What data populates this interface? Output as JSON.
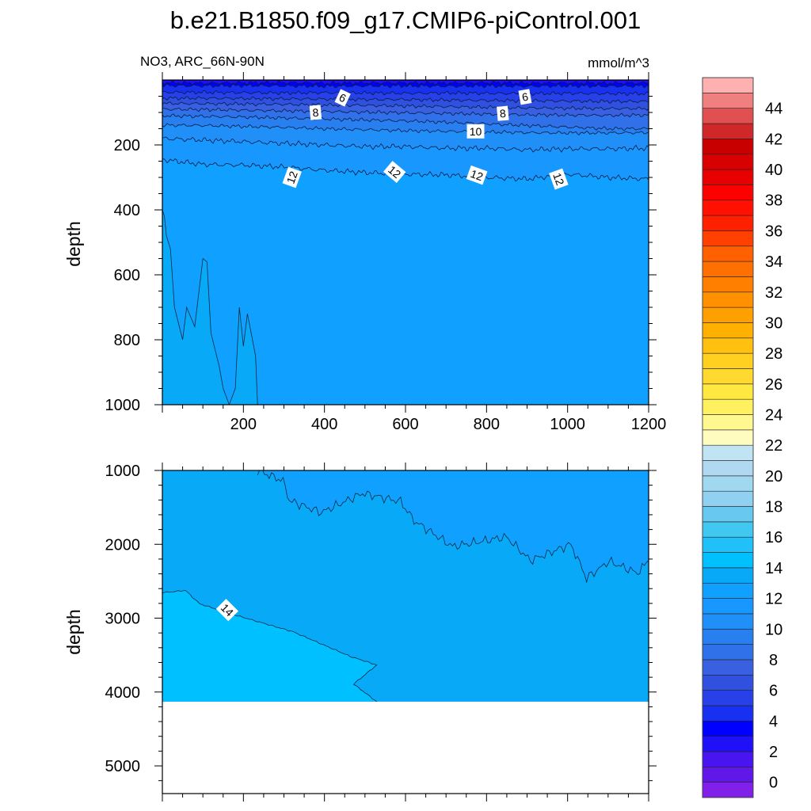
{
  "chart_data": {
    "type": "contour",
    "title": "b.e21.B1850.f09_g17.CMIP6-piControl.001",
    "subtitle_left": "NO3, ARC_66N-90N",
    "subtitle_right": "mmol/m^3",
    "ylabel": "depth",
    "panels": [
      {
        "name": "upper",
        "xlim": [
          0,
          1200
        ],
        "ylim": [
          0,
          1000
        ],
        "x_ticks": [
          "200",
          "400",
          "600",
          "800",
          "1000",
          "1200"
        ],
        "y_ticks": [
          "200",
          "400",
          "600",
          "800",
          "1000"
        ],
        "x_grid": [
          0,
          100,
          200,
          300,
          400,
          500,
          600,
          700,
          800,
          900,
          1000,
          1100,
          1200
        ],
        "contours": [
          {
            "level": 3,
            "depth": [
              8,
              10,
              9,
              8,
              10,
              9,
              9,
              10,
              8,
              10,
              9,
              10,
              9
            ]
          },
          {
            "level": 4,
            "depth": [
              17,
              18,
              17,
              18,
              19,
              18,
              18,
              19,
              18,
              19,
              18,
              19,
              18
            ]
          },
          {
            "level": 5,
            "depth": [
              38,
              38,
              39,
              40,
              39,
              40,
              41,
              40,
              41,
              42,
              41,
              42,
              42
            ]
          },
          {
            "level": 6,
            "depth": [
              56,
              56,
              57,
              58,
              59,
              60,
              60,
              62,
              63,
              64,
              65,
              66,
              66
            ]
          },
          {
            "level": 7,
            "depth": [
              72,
              73,
              74,
              75,
              77,
              78,
              80,
              82,
              84,
              86,
              87,
              88,
              88
            ]
          },
          {
            "level": 8,
            "depth": [
              90,
              91,
              93,
              95,
              97,
              99,
              101,
              103,
              105,
              107,
              108,
              109,
              108
            ]
          },
          {
            "level": 9,
            "depth": [
              110,
              112,
              114,
              117,
              120,
              123,
              126,
              130,
              135,
              140,
              145,
              150,
              150
            ]
          },
          {
            "level": 10,
            "depth": [
              139,
              140,
              143,
              146,
              150,
              153,
              156,
              158,
              160,
              162,
              163,
              163,
              162
            ]
          },
          {
            "level": 11,
            "depth": [
              180,
              185,
              190,
              195,
              200,
              205,
              205,
              210,
              210,
              215,
              212,
              212,
              210
            ]
          },
          {
            "level": 12,
            "depth": [
              245,
              260,
              262,
              268,
              278,
              285,
              290,
              292,
              300,
              305,
              290,
              300,
              305
            ]
          }
        ],
        "region_13_14": [
          [
            0,
            400
          ],
          [
            5,
            420
          ],
          [
            10,
            480
          ],
          [
            20,
            520
          ],
          [
            30,
            700
          ],
          [
            50,
            800
          ],
          [
            60,
            700
          ],
          [
            80,
            760
          ],
          [
            100,
            550
          ],
          [
            110,
            560
          ],
          [
            120,
            780
          ],
          [
            140,
            880
          ],
          [
            150,
            950
          ],
          [
            165,
            1000
          ],
          [
            180,
            950
          ],
          [
            190,
            700
          ],
          [
            200,
            820
          ],
          [
            210,
            720
          ],
          [
            230,
            850
          ],
          [
            235,
            1000
          ]
        ],
        "labels": [
          {
            "text": "6",
            "x": 445,
            "depth": 55,
            "angle": 25
          },
          {
            "text": "6",
            "x": 895,
            "depth": 52,
            "angle": -10
          },
          {
            "text": "8",
            "x": 378,
            "depth": 100,
            "angle": -5
          },
          {
            "text": "8",
            "x": 840,
            "depth": 103,
            "angle": -5
          },
          {
            "text": "10",
            "x": 773,
            "depth": 158,
            "angle": 0
          },
          {
            "text": "12",
            "x": 320,
            "depth": 300,
            "angle": -70
          },
          {
            "text": "12",
            "x": 573,
            "depth": 283,
            "angle": 40
          },
          {
            "text": "12",
            "x": 776,
            "depth": 293,
            "angle": 20
          },
          {
            "text": "12",
            "x": 978,
            "depth": 305,
            "angle": 70
          }
        ]
      },
      {
        "name": "lower",
        "xlim": [
          0,
          1200
        ],
        "ylim": [
          1000,
          5375
        ],
        "y_ticks": [
          "1000",
          "2000",
          "3000",
          "4000",
          "5000"
        ],
        "data_bottom_depth": 4130,
        "contours": [
          {
            "level": 13,
            "points": [
              [
                235,
                1000
              ],
              [
                298,
                1140
              ],
              [
                314,
                1410
              ],
              [
                392,
                1570
              ],
              [
                494,
                1310
              ],
              [
                588,
                1420
              ],
              [
                621,
                1680
              ],
              [
                716,
                2030
              ],
              [
                849,
                1900
              ],
              [
                908,
                2220
              ],
              [
                1008,
                2000
              ],
              [
                1047,
                2460
              ],
              [
                1102,
                2230
              ],
              [
                1173,
                2390
              ],
              [
                1200,
                2220
              ]
            ]
          },
          {
            "level": 14,
            "points": [
              [
                0,
                2656
              ],
              [
                57,
                2624
              ],
              [
                92,
                2806
              ],
              [
                186,
                2968
              ],
              [
                322,
                3183
              ],
              [
                463,
                3516
              ],
              [
                529,
                3634
              ],
              [
                472,
                3892
              ],
              [
                529,
                4130
              ]
            ]
          }
        ],
        "labels": [
          {
            "text": "14",
            "x": 160,
            "depth": 2890,
            "angle": 45
          }
        ]
      }
    ],
    "colorbar": {
      "levels_min": 0,
      "levels_max": 45,
      "step": 1,
      "tick_labels": [
        "0",
        "2",
        "4",
        "6",
        "8",
        "10",
        "12",
        "14",
        "16",
        "18",
        "20",
        "22",
        "24",
        "26",
        "28",
        "30",
        "32",
        "34",
        "36",
        "38",
        "40",
        "42",
        "44"
      ],
      "colors": [
        "#8020e8",
        "#6018e8",
        "#4814f0",
        "#2010f8",
        "#0000ff",
        "#1830f0",
        "#2840e8",
        "#3050e0",
        "#3860e0",
        "#3070e8",
        "#2880f0",
        "#2090f8",
        "#1898ff",
        "#10a0ff",
        "#08aaf8",
        "#00c0ff",
        "#20c0f8",
        "#40c8f0",
        "#68c8f0",
        "#90d0f0",
        "#a0d8f0",
        "#b0d8f0",
        "#c0e4f4",
        "#fffcc0",
        "#fff890",
        "#fff060",
        "#ffe840",
        "#ffd830",
        "#ffd020",
        "#ffc010",
        "#ffb000",
        "#ffa000",
        "#ff9000",
        "#ff8000",
        "#ff7000",
        "#ff6000",
        "#ff4000",
        "#ff2000",
        "#ff1000",
        "#ff0000",
        "#e80000",
        "#d80000",
        "#c80000",
        "#d02828",
        "#e05050",
        "#f08080",
        "#ffb0b0"
      ]
    }
  }
}
